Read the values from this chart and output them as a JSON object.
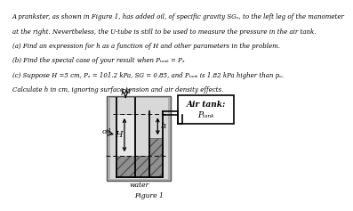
{
  "line1": "A prankster, as shown in Figure 1, has added oil, of specific gravity SGₒ, to the left leg of the manometer",
  "line2": "at the right. Nevertheless, the U-tube is still to be used to measure the pressure in the air tank.",
  "line3": "(a) Find an expression for h as a function of H and other parameters in the problem.",
  "line4": "(b) Find the special case of your result when Pₜₐₙₖ = Pₐ",
  "line5": "(c) Suppose H =5 cm, Pₐ = 101.2 kPa, SG = 0.85, and Pₜₐₙₖ is 1.82 kPa higher than pₐ.",
  "line6": "Calculate h in cm, ignoring surface tension and air density effects.",
  "figure_label": "Figure 1",
  "air_tank_line1": "Air tank:",
  "air_tank_line2": "Pₜₐₙₖ",
  "oil_label": "oil",
  "pa_label": "pa",
  "water_label": "water",
  "H_label": "H",
  "h_label": "h",
  "bg_color": "#ffffff"
}
